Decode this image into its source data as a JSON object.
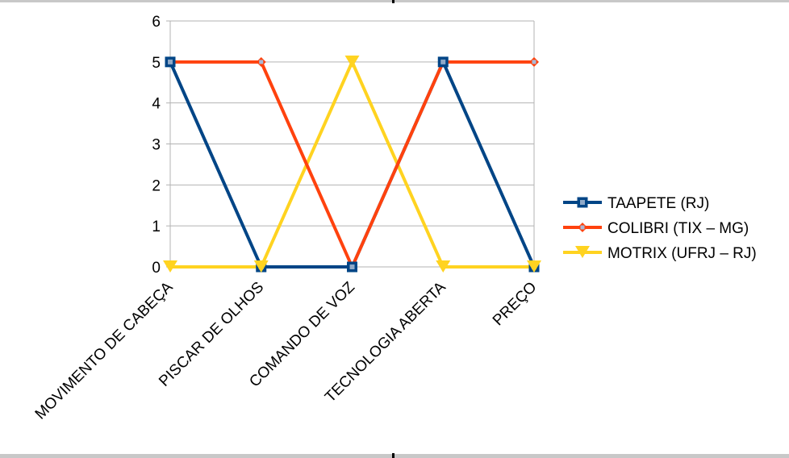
{
  "chart_data": {
    "type": "line",
    "title": "",
    "xlabel": "",
    "ylabel": "",
    "categories": [
      "MOVIMENTO DE CABEÇA",
      "PISCAR DE OLHOS",
      "COMANDO DE VOZ",
      "TECNOLOGIA ABERTA",
      "PREÇO"
    ],
    "ylim": [
      0,
      6
    ],
    "yticks": [
      0,
      1,
      2,
      3,
      4,
      5,
      6
    ],
    "grid": true,
    "legend_position": "right",
    "series": [
      {
        "name": "TAAPETE (RJ)",
        "values": [
          5,
          0,
          0,
          5,
          0
        ],
        "color": "#004586",
        "marker": "square"
      },
      {
        "name": "COLIBRI (TIX – MG)",
        "values": [
          5,
          5,
          0,
          5,
          5
        ],
        "color": "#ff420e",
        "marker": "diamond"
      },
      {
        "name": "MOTRIX (UFRJ – RJ)",
        "values": [
          0,
          0,
          5,
          0,
          0
        ],
        "color": "#ffd320",
        "marker": "triangle-down"
      }
    ]
  }
}
